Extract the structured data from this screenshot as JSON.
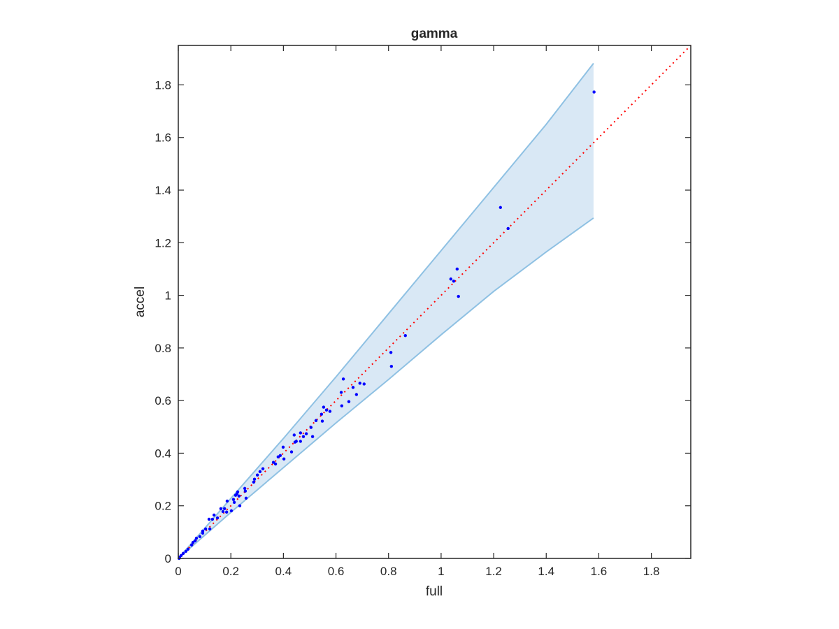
{
  "chart_data": {
    "type": "scatter",
    "title": "gamma",
    "x_label": "full",
    "y_label": "accel",
    "xlim": [
      0,
      1.95
    ],
    "ylim": [
      0,
      1.95
    ],
    "xticks": [
      0,
      0.2,
      0.4,
      0.6,
      0.8,
      1,
      1.2,
      1.4,
      1.6,
      1.8
    ],
    "yticks": [
      0,
      0.2,
      0.4,
      0.6,
      0.8,
      1,
      1.2,
      1.4,
      1.6,
      1.8
    ],
    "color": "#0000ff",
    "x": [
      1.582,
      1.226,
      1.255,
      1.061,
      1.037,
      1.048,
      1.066,
      0.864,
      0.809,
      0.811,
      0.628,
      0.691,
      0.707,
      0.665,
      0.62,
      0.678,
      0.649,
      0.622,
      0.553,
      0.564,
      0.577,
      0.545,
      0.524,
      0.548,
      0.505,
      0.511,
      0.465,
      0.441,
      0.487,
      0.476,
      0.449,
      0.465,
      0.444,
      0.431,
      0.399,
      0.388,
      0.402,
      0.38,
      0.362,
      0.37,
      0.322,
      0.311,
      0.301,
      0.29,
      0.287,
      0.253,
      0.255,
      0.258,
      0.226,
      0.223,
      0.218,
      0.231,
      0.234,
      0.21,
      0.213,
      0.202,
      0.186,
      0.176,
      0.17,
      0.184,
      0.162,
      0.149,
      0.136,
      0.117,
      0.13,
      0.12,
      0.104,
      0.093,
      0.093,
      0.082,
      0.069,
      0.064,
      0.051,
      0.056,
      0.037,
      0.029,
      0.019,
      0.011,
      0.005,
      0.003
    ],
    "values": [
      1.773,
      1.334,
      1.254,
      1.1,
      1.062,
      1.054,
      0.996,
      0.847,
      0.783,
      0.73,
      0.682,
      0.666,
      0.663,
      0.65,
      0.631,
      0.623,
      0.596,
      0.58,
      0.575,
      0.564,
      0.559,
      0.548,
      0.524,
      0.522,
      0.498,
      0.463,
      0.477,
      0.469,
      0.474,
      0.463,
      0.445,
      0.445,
      0.442,
      0.405,
      0.423,
      0.391,
      0.378,
      0.386,
      0.365,
      0.359,
      0.341,
      0.33,
      0.317,
      0.301,
      0.29,
      0.266,
      0.256,
      0.229,
      0.253,
      0.245,
      0.24,
      0.237,
      0.2,
      0.224,
      0.213,
      0.181,
      0.218,
      0.189,
      0.178,
      0.176,
      0.189,
      0.154,
      0.165,
      0.149,
      0.149,
      0.112,
      0.112,
      0.096,
      0.104,
      0.083,
      0.077,
      0.067,
      0.051,
      0.061,
      0.035,
      0.027,
      0.019,
      0.011,
      0.005,
      0
    ],
    "band": {
      "x": [
        0,
        0.2,
        0.4,
        0.6,
        0.8,
        1.0,
        1.2,
        1.4,
        1.58
      ],
      "upper": [
        0,
        0.228,
        0.456,
        0.69,
        0.93,
        1.17,
        1.41,
        1.65,
        1.882
      ],
      "lower": [
        0,
        0.175,
        0.345,
        0.515,
        0.68,
        0.85,
        1.015,
        1.165,
        1.294
      ],
      "color": "#d9e8f5",
      "edge_color": "#8fc1e3"
    },
    "reference_line": {
      "x": [
        0,
        1.95
      ],
      "values": [
        0,
        1.95
      ],
      "color": "#ff0000"
    }
  }
}
